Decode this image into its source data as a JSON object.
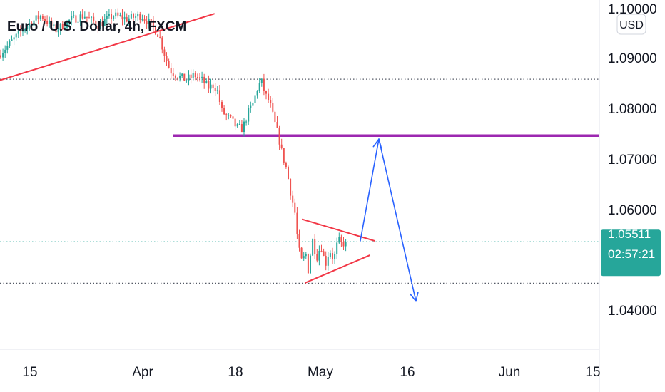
{
  "chart_data": {
    "type": "candlestick",
    "title": "Euro / U.S. Dollar, 4h, FXCM",
    "currency_label": "USD",
    "y_ticks": [
      "1.10000",
      "1.09000",
      "1.08000",
      "1.07000",
      "1.06000",
      "1.04000"
    ],
    "y_tick_values": [
      1.1,
      1.09,
      1.08,
      1.07,
      1.06,
      1.04
    ],
    "x_ticks": [
      "15",
      "Apr",
      "18",
      "May",
      "16",
      "Jun",
      "15"
    ],
    "ylim": [
      1.031,
      1.1005
    ],
    "last_price": "1.05511",
    "countdown": "02:57:21",
    "colors": {
      "up": "#26a69a",
      "down": "#ef5350",
      "resistance": "#9c27b0",
      "arrow": "#2962ff",
      "pattern": "#f23645",
      "price_tag": "#26a69a"
    },
    "levels": [
      {
        "price": 1.0877,
        "style": "dotted"
      },
      {
        "price": 1.0764,
        "style": "solid"
      },
      {
        "price": 1.05511,
        "style": "dotted-green"
      },
      {
        "price": 1.0468,
        "style": "dotted"
      }
    ],
    "price_path": [
      [
        0,
        1.0925
      ],
      [
        20,
        1.0955
      ],
      [
        40,
        1.0985
      ],
      [
        60,
        1.1005
      ],
      [
        80,
        1.0975
      ],
      [
        100,
        1.0995
      ],
      [
        120,
        1.1005
      ],
      [
        140,
        1.0985
      ],
      [
        160,
        1.1005
      ],
      [
        180,
        1.0998
      ],
      [
        200,
        1.1005
      ],
      [
        215,
        1.0985
      ],
      [
        225,
        1.0965
      ],
      [
        232,
        1.093
      ],
      [
        240,
        1.0895
      ],
      [
        250,
        1.0885
      ],
      [
        262,
        1.0875
      ],
      [
        275,
        1.0885
      ],
      [
        285,
        1.0875
      ],
      [
        295,
        1.086
      ],
      [
        302,
        1.0865
      ],
      [
        308,
        1.085
      ],
      [
        312,
        1.0815
      ],
      [
        318,
        1.0805
      ],
      [
        326,
        1.0795
      ],
      [
        334,
        1.078
      ],
      [
        342,
        1.0778
      ],
      [
        350,
        1.081
      ],
      [
        356,
        1.0825
      ],
      [
        362,
        1.0855
      ],
      [
        368,
        1.0875
      ],
      [
        374,
        1.0845
      ],
      [
        380,
        1.083
      ],
      [
        386,
        1.0795
      ],
      [
        392,
        1.0765
      ],
      [
        398,
        1.0725
      ],
      [
        404,
        1.0695
      ],
      [
        410,
        1.0645
      ],
      [
        416,
        1.0605
      ],
      [
        420,
        1.054
      ],
      [
        426,
        1.0505
      ],
      [
        430,
        1.0535
      ],
      [
        434,
        1.0495
      ],
      [
        440,
        1.0555
      ],
      [
        446,
        1.052
      ],
      [
        452,
        1.0545
      ],
      [
        458,
        1.0505
      ],
      [
        464,
        1.0535
      ],
      [
        470,
        1.0515
      ],
      [
        476,
        1.0555
      ],
      [
        482,
        1.0545
      ],
      [
        485,
        1.0551
      ]
    ],
    "annotations": {
      "uptrend_line": {
        "from": [
          0,
          1.0875
        ],
        "to": [
          300,
          1.1008
        ]
      },
      "triangle_upper": {
        "from": [
          424,
          1.0596
        ],
        "to": [
          525,
          1.0553
        ]
      },
      "triangle_lower": {
        "from": [
          428,
          1.0469
        ],
        "to": [
          518,
          1.0524
        ]
      },
      "arrow_up": {
        "from": [
          505,
          1.0553
        ],
        "to": [
          531,
          1.0757
        ]
      },
      "arrow_down": {
        "from": [
          531,
          1.0757
        ],
        "to": [
          583,
          1.0432
        ]
      }
    }
  }
}
